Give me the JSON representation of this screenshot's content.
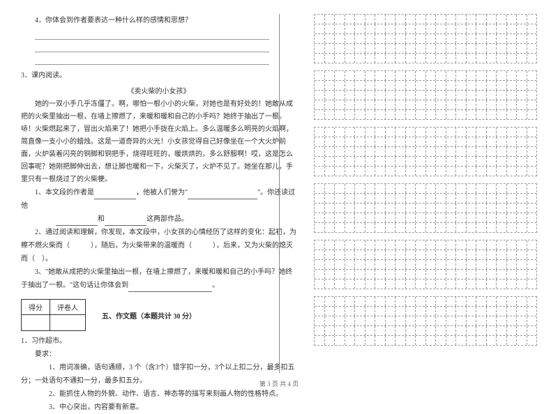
{
  "q4": "4．你体会到作者要表达一种什么样的感情和思想？",
  "sec3": "3．课内阅读。",
  "story_title": "《卖火柴的小女孩》",
  "story_p1": "她的一双小手几乎冻僵了。啊，哪怕一根小小的火柴，对她也是有好处的！她敢从成把的火柴里抽出一根，在墙上擦燃了，来暖和暖和自己的小手吗？她终于抽出了一根。哧！火柴燃起来了，冒出火焰来了！她把小手拢在火焰上。多么温暖多么明亮的火焰啊，简直像一支小小的蜡烛。这是一道奇异的火光！小女孩觉得自己好像坐在一个大火炉前面，火炉装着闪亮的铜脚和铜把手，烧得旺旺的，暖烘烘的，多么舒服啊！哎，这是怎么回事呢？她刚把脚伸出去，想让脚也暖和一下，火柴灭了，火炉不见了。她坐在那儿，手里只有一根烧过了的火柴梗。",
  "q3_1": "1、本文段的作者是",
  "q3_1_mid": "，他被人们誉为\"",
  "q3_1_end": "\"。你还读过他",
  "q3_1_line2a": "和",
  "q3_1_line2b": "这两部作品。",
  "q3_2": "2、通过阅读和理解，你发现，本文段中，小女孩的心情经历了这样的变化：起初，为檫不燃火柴而（　　　），随后，为火柴带来的温暖而（　　　），后来，又为火柴的熄灭而（　）。",
  "q3_3a": "3、\"她敢从成把的火柴里抽出一根，在墙上擦燃了，来暖和暖和自己的小手吗？她终于抽出了一根。\"这句话让你体会到",
  "period": "。",
  "score_label1": "得分",
  "score_label2": "评卷人",
  "section5": "五、作文题（本题共计 30 分）",
  "essay_title": "1．习作超市。",
  "essay_req": "要求：",
  "essay_r1": "1、用词准确，语句通顺，3 个（含3个）错字扣一分，3个以上扣二分，最多扣五分；一处语句不通扣一分，最多扣五分。",
  "essay_r2": "2、能抓住人物的外貌、动作、语言、神态等的描写来刻画人物的性格特点。",
  "essay_r3": "3、中心突出，内容要有新意。",
  "footer": "第 3 页 共 4 页",
  "grid_boxes": [
    {
      "rows": 5,
      "cols": 22
    },
    {
      "rows": 5,
      "cols": 22
    },
    {
      "rows": 5,
      "cols": 22
    },
    {
      "rows": 5,
      "cols": 22
    },
    {
      "rows": 5,
      "cols": 22
    },
    {
      "rows": 5,
      "cols": 22
    }
  ]
}
